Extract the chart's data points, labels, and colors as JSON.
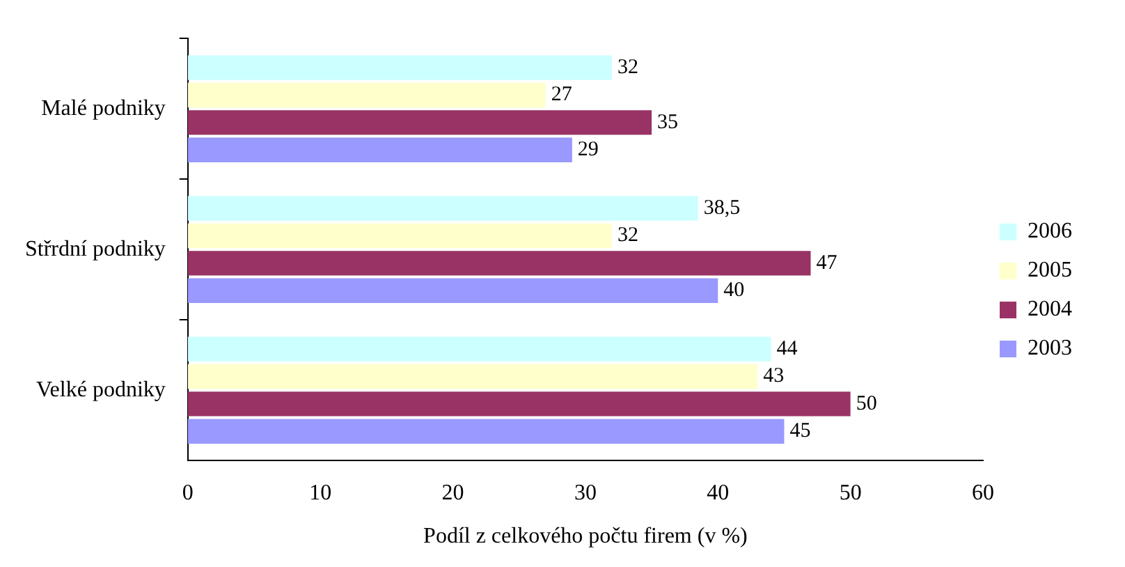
{
  "chart_data": {
    "type": "bar",
    "orientation": "horizontal",
    "xlabel": "Podíl z celkového počtu firem (v %)",
    "categories": [
      "Malé podniky",
      "Střrdní podniky",
      "Velké podniky"
    ],
    "series": [
      {
        "name": "2006",
        "color": "#ccffff",
        "values": [
          32,
          38.5,
          44
        ],
        "value_labels": [
          "32",
          "38,5",
          "44"
        ]
      },
      {
        "name": "2005",
        "color": "#ffffcc",
        "values": [
          27,
          32,
          43
        ],
        "value_labels": [
          "27",
          "32",
          "43"
        ]
      },
      {
        "name": "2004",
        "color": "#993366",
        "values": [
          35,
          47,
          50
        ],
        "value_labels": [
          "35",
          "47",
          "50"
        ]
      },
      {
        "name": "2003",
        "color": "#9999ff",
        "values": [
          29,
          40,
          45
        ],
        "value_labels": [
          "29",
          "40",
          "45"
        ]
      }
    ],
    "xlim": [
      0,
      60
    ],
    "xticks": [
      0,
      10,
      20,
      30,
      40,
      50,
      60
    ],
    "grid": false,
    "legend": "right"
  }
}
